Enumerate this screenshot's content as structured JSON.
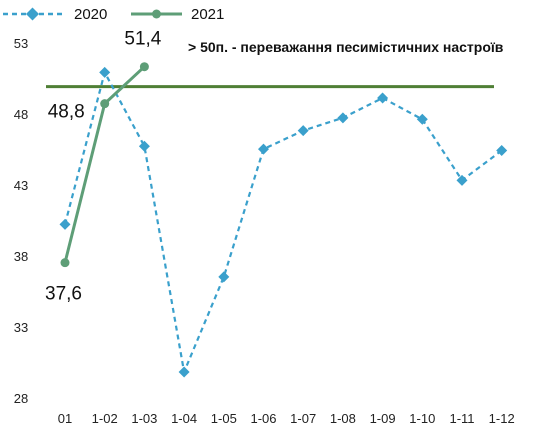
{
  "chart_data": {
    "type": "line",
    "categories": [
      "01",
      "1-02",
      "1-03",
      "1-04",
      "1-05",
      "1-06",
      "1-07",
      "1-08",
      "1-09",
      "1-10",
      "1-11",
      "1-12"
    ],
    "series": [
      {
        "name": "2020",
        "color": "#3aa0cc",
        "style": "dashed",
        "values": [
          40.3,
          51.0,
          45.8,
          29.9,
          36.6,
          45.6,
          46.9,
          47.8,
          49.2,
          47.7,
          43.4,
          45.5
        ]
      },
      {
        "name": "2021",
        "color": "#5e9e77",
        "style": "solid",
        "values": [
          37.6,
          48.8,
          51.4,
          null,
          null,
          null,
          null,
          null,
          null,
          null,
          null,
          null
        ],
        "data_labels": [
          "37,6",
          "48,8",
          "51,4"
        ]
      }
    ],
    "reference_line": {
      "value": 50,
      "color": "#4f7f35"
    },
    "annotation": "> 50п. - переважання песимістичних настроїв",
    "ylim": [
      28,
      53
    ],
    "yticks": [
      "28",
      "33",
      "38",
      "43",
      "48",
      "53"
    ],
    "ytick_values": [
      28,
      33,
      38,
      43,
      48,
      53
    ],
    "grid": false,
    "legend_position": "top-left"
  }
}
